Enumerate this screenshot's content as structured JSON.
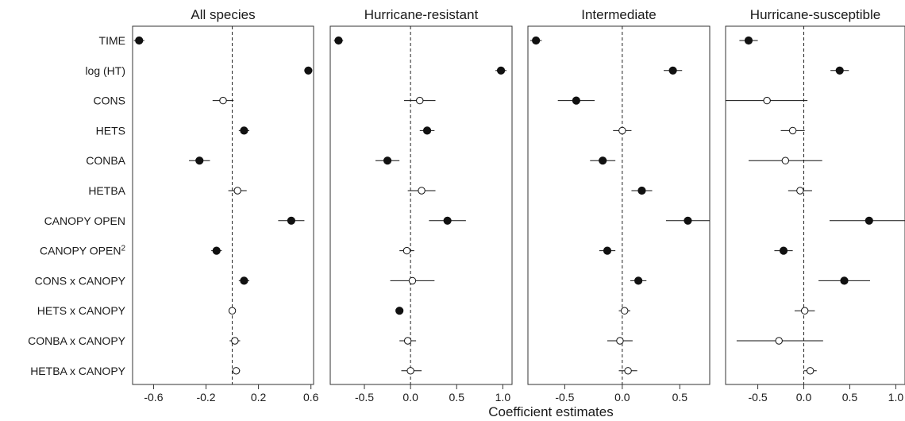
{
  "chart_data": {
    "type": "scatter",
    "subtype": "coefficient-plot",
    "xlabel": "Coefficient estimates",
    "terms": [
      "TIME",
      "log (HT)",
      "CONS",
      "HETS",
      "CONBA",
      "HETBA",
      "CANOPY OPEN",
      "CANOPY OPEN",
      "CONS x CANOPY",
      "HETS x CANOPY",
      "CONBA x CANOPY",
      "HETBA x CANOPY"
    ],
    "term_superscripts": [
      "",
      "",
      "",
      "",
      "",
      "",
      "",
      "2",
      "",
      "",
      "",
      ""
    ],
    "reference_line": 0,
    "marker_legend": {
      "filled": "significant",
      "open": "not significant"
    },
    "panels": [
      {
        "title": "All species",
        "xlim": [
          -0.76,
          0.62
        ],
        "ticks": [
          -0.6,
          -0.2,
          0.2,
          0.6
        ],
        "tick_labels": [
          "-0.6",
          "-0.2",
          "0.2",
          "0.6"
        ],
        "estimate": [
          -0.71,
          0.58,
          -0.07,
          0.09,
          -0.25,
          0.04,
          0.45,
          -0.12,
          0.09,
          0.0,
          0.02,
          0.03
        ],
        "lower": [
          -0.75,
          0.55,
          -0.15,
          0.05,
          -0.33,
          -0.03,
          0.35,
          -0.16,
          0.05,
          -0.02,
          -0.02,
          0.0
        ],
        "upper": [
          -0.67,
          0.61,
          0.01,
          0.13,
          -0.17,
          0.11,
          0.55,
          -0.08,
          0.13,
          0.02,
          0.06,
          0.06
        ],
        "significant": [
          true,
          true,
          false,
          true,
          true,
          false,
          true,
          true,
          true,
          false,
          false,
          false
        ]
      },
      {
        "title": "Hurricane-resistant",
        "xlim": [
          -0.87,
          1.1
        ],
        "ticks": [
          -0.5,
          0.0,
          0.5,
          1.0
        ],
        "tick_labels": [
          "-0.5",
          "0.0",
          "0.5",
          "1.0"
        ],
        "estimate": [
          -0.78,
          0.98,
          0.1,
          0.18,
          -0.25,
          0.12,
          0.4,
          -0.04,
          0.02,
          -0.12,
          -0.03,
          0.0
        ],
        "lower": [
          -0.83,
          0.92,
          -0.07,
          0.1,
          -0.38,
          -0.03,
          0.2,
          -0.12,
          -0.22,
          -0.16,
          -0.12,
          -0.1
        ],
        "upper": [
          -0.73,
          1.04,
          0.27,
          0.26,
          -0.12,
          0.27,
          0.6,
          0.04,
          0.26,
          -0.08,
          0.06,
          0.12
        ],
        "significant": [
          true,
          true,
          false,
          true,
          true,
          false,
          true,
          false,
          false,
          true,
          false,
          false
        ]
      },
      {
        "title": "Intermediate",
        "xlim": [
          -0.82,
          0.76
        ],
        "ticks": [
          -0.5,
          0.0,
          0.5
        ],
        "tick_labels": [
          "-0.5",
          "0.0",
          "0.5"
        ],
        "estimate": [
          -0.75,
          0.44,
          -0.4,
          0.0,
          -0.17,
          0.17,
          0.57,
          -0.13,
          0.14,
          0.02,
          -0.02,
          0.05
        ],
        "lower": [
          -0.8,
          0.36,
          -0.56,
          -0.08,
          -0.28,
          0.08,
          0.38,
          -0.2,
          0.07,
          -0.03,
          -0.13,
          -0.03
        ],
        "upper": [
          -0.7,
          0.52,
          -0.24,
          0.08,
          -0.06,
          0.26,
          0.76,
          -0.06,
          0.21,
          0.07,
          0.09,
          0.13
        ],
        "significant": [
          true,
          true,
          true,
          false,
          true,
          true,
          true,
          true,
          true,
          false,
          false,
          false
        ]
      },
      {
        "title": "Hurricane-susceptible",
        "xlim": [
          -0.85,
          1.1
        ],
        "ticks": [
          -0.5,
          0.0,
          0.5,
          1.0
        ],
        "tick_labels": [
          "-0.5",
          "0.0",
          "0.5",
          "1.0"
        ],
        "estimate": [
          -0.6,
          0.39,
          -0.4,
          -0.12,
          -0.2,
          -0.04,
          0.71,
          -0.22,
          0.44,
          0.01,
          -0.27,
          0.07
        ],
        "lower": [
          -0.7,
          0.29,
          -0.85,
          -0.25,
          -0.6,
          -0.17,
          0.28,
          -0.32,
          0.16,
          -0.1,
          -0.73,
          0.0
        ],
        "upper": [
          -0.5,
          0.49,
          0.04,
          0.01,
          0.2,
          0.09,
          1.1,
          -0.12,
          0.72,
          0.12,
          0.21,
          0.14
        ],
        "significant": [
          true,
          true,
          false,
          false,
          false,
          false,
          true,
          true,
          true,
          false,
          false,
          false
        ]
      }
    ]
  }
}
